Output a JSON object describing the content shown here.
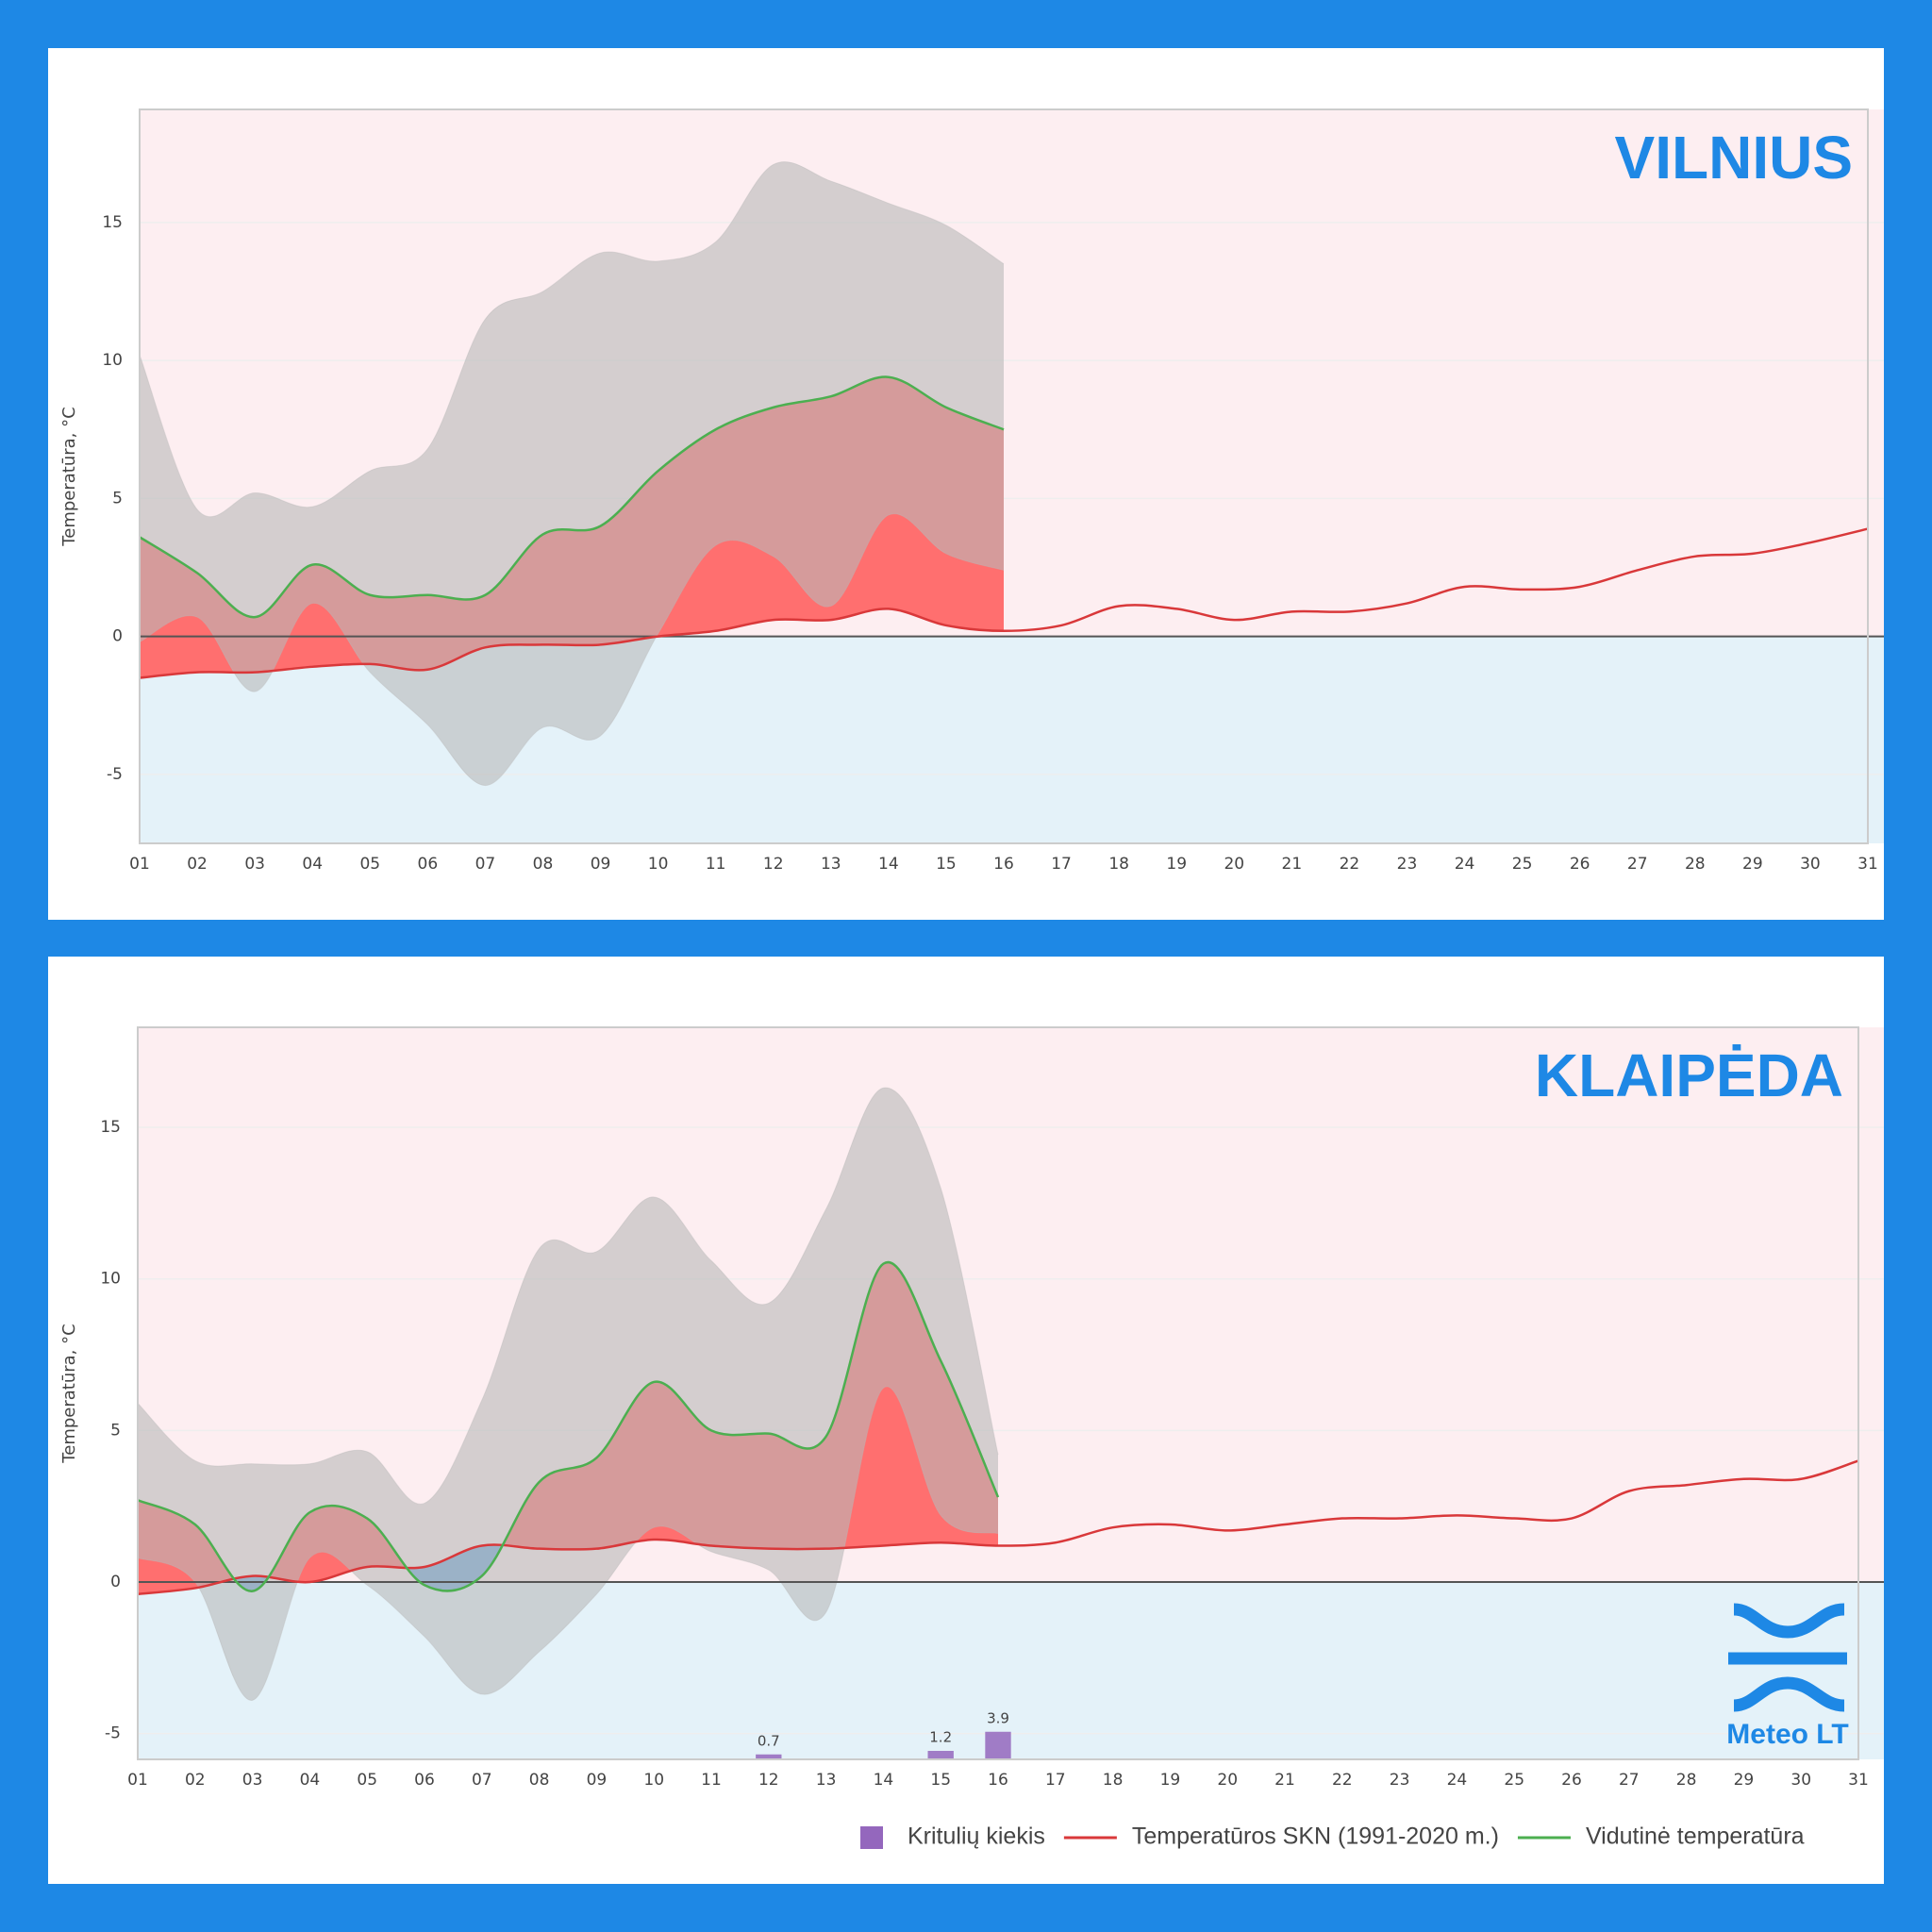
{
  "chart_data": [
    {
      "type": "line",
      "title": "VILNIUS",
      "y_label": "Temperatūra, °C",
      "categories": [
        "01",
        "02",
        "03",
        "04",
        "05",
        "06",
        "07",
        "08",
        "09",
        "10",
        "11",
        "12",
        "13",
        "14",
        "15",
        "16",
        "17",
        "18",
        "19",
        "20",
        "21",
        "22",
        "23",
        "24",
        "25",
        "26",
        "27",
        "28",
        "29",
        "30",
        "31"
      ],
      "ylim": [
        -7.5,
        19.1
      ],
      "yticks": [
        -5,
        0,
        5,
        10,
        15
      ],
      "grid": true,
      "range": {
        "color": "#b9b9b9",
        "max": [
          10.2,
          4.6,
          5.2,
          4.7,
          6.0,
          6.8,
          11.5,
          12.5,
          13.9,
          13.6,
          14.3,
          17.1,
          16.5,
          15.7,
          14.9,
          13.5,
          null,
          null,
          null,
          null,
          null,
          null,
          null,
          null,
          null,
          null,
          null,
          null,
          null,
          null,
          null
        ],
        "min": [
          -0.2,
          0.7,
          -2.0,
          1.2,
          -1.3,
          -3.2,
          -5.4,
          -3.3,
          -3.6,
          0.1,
          3.3,
          2.9,
          1.1,
          4.4,
          3.0,
          2.4,
          null,
          null,
          null,
          null,
          null,
          null,
          null,
          null,
          null,
          null,
          null,
          null,
          null,
          null,
          null
        ]
      },
      "series": [
        {
          "color": "#d9383a",
          "values": [
            -1.5,
            -1.3,
            -1.3,
            -1.1,
            -1.0,
            -1.2,
            -0.4,
            -0.3,
            -0.3,
            0.0,
            0.2,
            0.6,
            0.6,
            1.0,
            0.4,
            0.2,
            0.4,
            1.1,
            1.0,
            0.6,
            0.9,
            0.9,
            1.2,
            1.8,
            1.7,
            1.8,
            2.4,
            2.9,
            3.0,
            3.4,
            3.9
          ]
        },
        {
          "color": "#4caf50",
          "values": [
            3.6,
            2.3,
            0.7,
            2.6,
            1.5,
            1.5,
            1.5,
            3.7,
            4.0,
            6.0,
            7.5,
            8.3,
            8.7,
            9.4,
            8.3,
            7.5,
            null,
            null,
            null,
            null,
            null,
            null,
            null,
            null,
            null,
            null,
            null,
            null,
            null,
            null,
            null
          ]
        }
      ]
    },
    {
      "type": "line",
      "title": "KLAIPĖDA",
      "y_label": "Temperatūra, °C",
      "logo": "Meteo LT",
      "legend": "bottom-right",
      "categories": [
        "01",
        "02",
        "03",
        "04",
        "05",
        "06",
        "07",
        "08",
        "09",
        "10",
        "11",
        "12",
        "13",
        "14",
        "15",
        "16",
        "17",
        "18",
        "19",
        "20",
        "21",
        "22",
        "23",
        "24",
        "25",
        "26",
        "27",
        "28",
        "29",
        "30",
        "31"
      ],
      "ylim": [
        -5.85,
        18.3
      ],
      "yticks": [
        -5,
        0,
        5,
        10,
        15
      ],
      "grid": true,
      "range": {
        "color": "#b9b9b9",
        "max": [
          5.9,
          4.0,
          3.9,
          3.9,
          4.3,
          2.6,
          6.0,
          11.0,
          10.9,
          12.7,
          10.6,
          9.2,
          12.3,
          16.3,
          13.0,
          4.2,
          null,
          null,
          null,
          null,
          null,
          null,
          null,
          null,
          null,
          null,
          null,
          null,
          null,
          null,
          null
        ],
        "min": [
          0.8,
          0.0,
          -3.9,
          0.8,
          -0.1,
          -1.8,
          -3.7,
          -2.3,
          -0.4,
          1.8,
          1.0,
          0.4,
          -1.0,
          6.4,
          2.2,
          1.6,
          null,
          null,
          null,
          null,
          null,
          null,
          null,
          null,
          null,
          null,
          null,
          null,
          null,
          null,
          null
        ]
      },
      "series": [
        {
          "name": "Kritulių kiekis",
          "type": "bar",
          "color": "#9467bd",
          "values": [
            null,
            null,
            null,
            null,
            null,
            null,
            null,
            null,
            null,
            null,
            null,
            0.7,
            null,
            null,
            1.2,
            3.9,
            null,
            null,
            null,
            null,
            null,
            null,
            null,
            null,
            null,
            null,
            null,
            null,
            null,
            null,
            null
          ]
        },
        {
          "name": "Temperatūros SKN (1991-2020 m.)",
          "color": "#d9383a",
          "values": [
            -0.4,
            -0.2,
            0.2,
            0.0,
            0.5,
            0.5,
            1.2,
            1.1,
            1.1,
            1.4,
            1.2,
            1.1,
            1.1,
            1.2,
            1.3,
            1.2,
            1.3,
            1.8,
            1.9,
            1.7,
            1.9,
            2.1,
            2.1,
            2.2,
            2.1,
            2.1,
            3.0,
            3.2,
            3.4,
            3.4,
            4.0
          ]
        },
        {
          "name": "Vidutinė temperatūra",
          "color": "#4caf50",
          "values": [
            2.7,
            1.9,
            -0.3,
            2.3,
            2.1,
            -0.1,
            0.2,
            3.3,
            4.1,
            6.6,
            5.0,
            4.9,
            4.8,
            10.5,
            7.3,
            2.8,
            null,
            null,
            null,
            null,
            null,
            null,
            null,
            null,
            null,
            null,
            null,
            null,
            null,
            null,
            null
          ]
        }
      ]
    }
  ]
}
